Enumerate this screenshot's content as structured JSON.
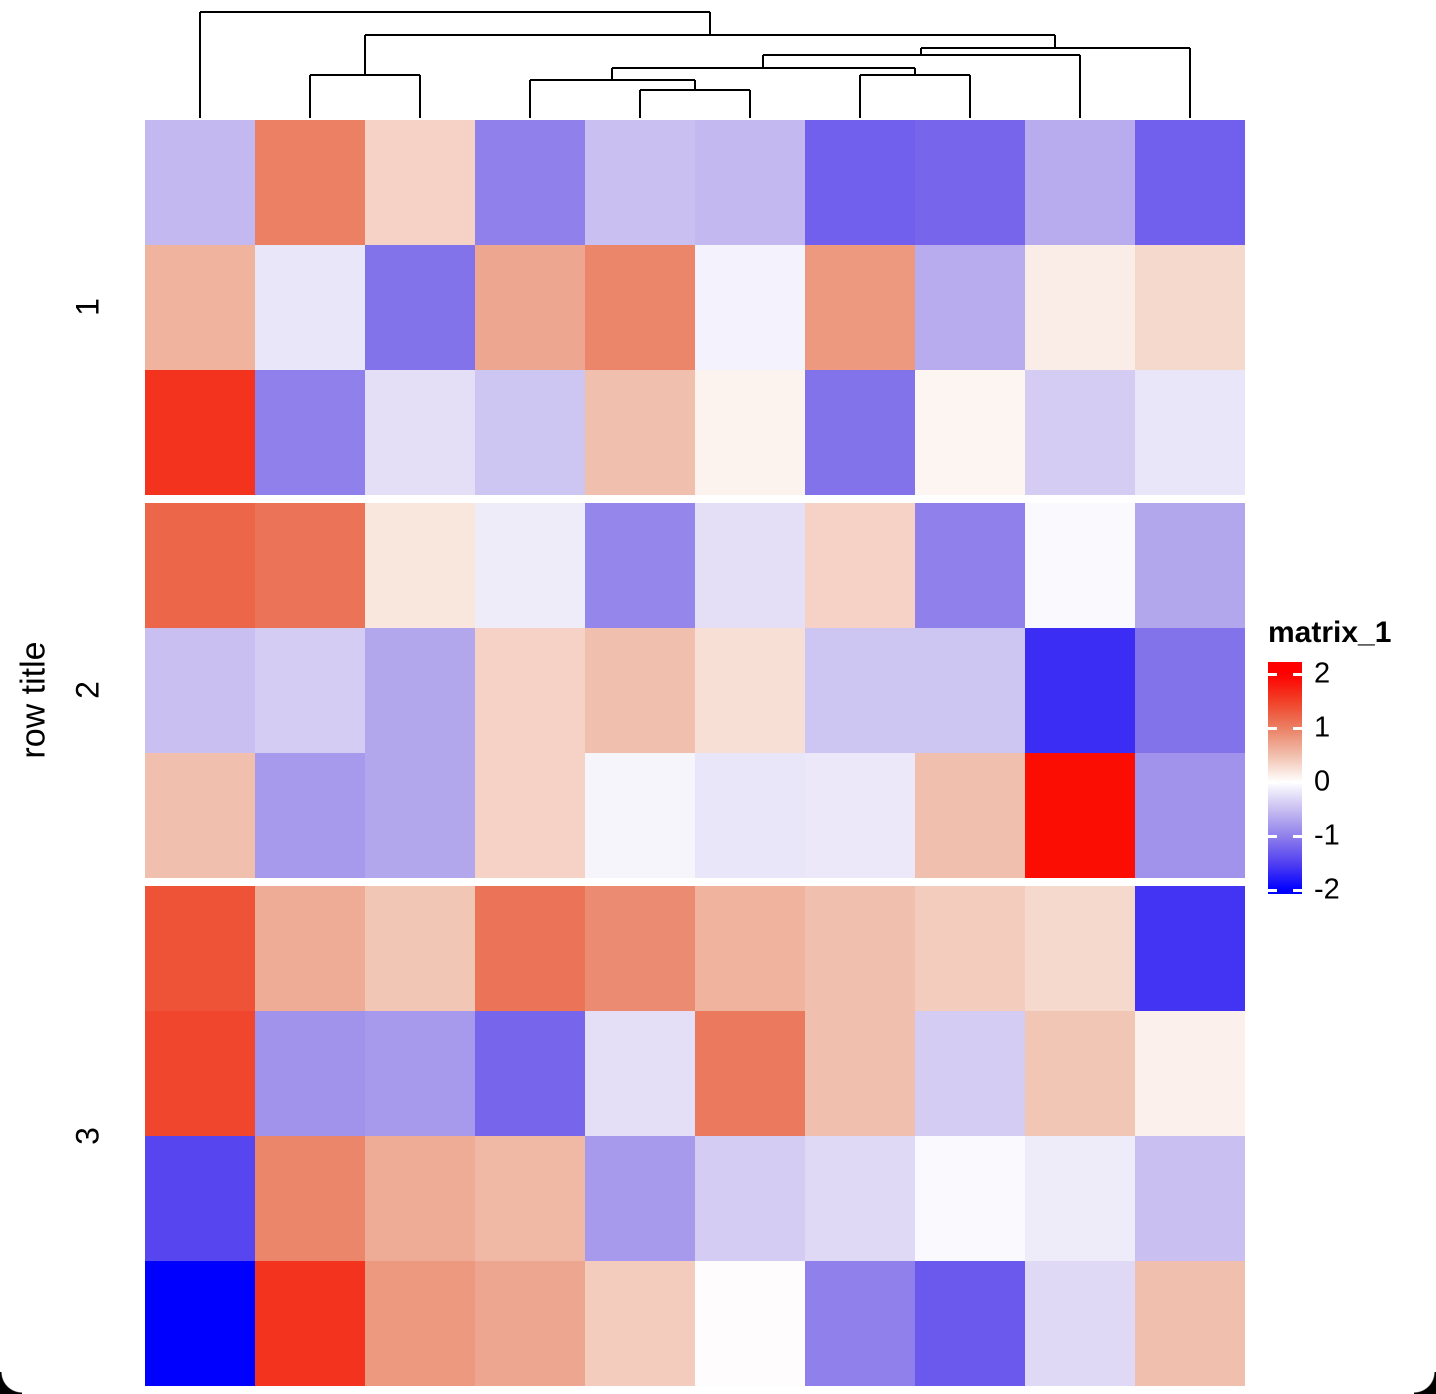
{
  "figure": {
    "row_title": "row title",
    "row_groups": [
      "1",
      "2",
      "3"
    ],
    "legend": {
      "title": "matrix_1",
      "ticks": [
        "2",
        "1",
        "0",
        "-1",
        "-2"
      ],
      "tick_values": [
        2,
        1,
        0,
        -1,
        -2
      ]
    }
  },
  "chart_data": {
    "type": "heatmap",
    "legend_title": "matrix_1",
    "row_title": "row title",
    "n_rows": 10,
    "n_cols": 10,
    "value_range": [
      -2,
      2
    ],
    "colormap": {
      "low": "#0000FF",
      "mid": "#FFFFFF",
      "high": "#FF0000"
    },
    "row_split": {
      "1": [
        0,
        1,
        2
      ],
      "2": [
        3,
        4,
        5
      ],
      "3": [
        6,
        7,
        8,
        9
      ]
    },
    "values": [
      [
        -0.55,
        1.0,
        0.35,
        -1.0,
        -0.5,
        -0.55,
        -1.25,
        -1.2,
        -0.65,
        -1.25
      ],
      [
        0.6,
        -0.2,
        -1.1,
        0.7,
        0.95,
        -0.1,
        0.8,
        -0.65,
        0.15,
        0.3
      ],
      [
        1.6,
        -1.0,
        -0.25,
        -0.45,
        0.5,
        0.1,
        -1.1,
        0.08,
        -0.4,
        -0.2
      ],
      [
        1.2,
        1.1,
        0.2,
        -0.15,
        -0.95,
        -0.25,
        0.35,
        -1.0,
        -0.05,
        -0.7
      ],
      [
        -0.5,
        -0.4,
        -0.7,
        0.35,
        0.5,
        0.25,
        -0.45,
        -0.45,
        -1.65,
        -1.1
      ],
      [
        0.5,
        -0.8,
        -0.7,
        0.35,
        -0.08,
        -0.2,
        -0.18,
        0.5,
        1.9,
        -0.85
      ],
      [
        1.35,
        0.65,
        0.45,
        1.1,
        0.9,
        0.6,
        0.5,
        0.4,
        0.3,
        -1.6
      ],
      [
        1.45,
        -0.85,
        -0.8,
        -1.2,
        -0.25,
        1.05,
        0.5,
        -0.4,
        0.45,
        0.12
      ],
      [
        -1.45,
        0.95,
        0.65,
        0.55,
        -0.8,
        -0.4,
        -0.3,
        -0.05,
        -0.15,
        -0.5
      ],
      [
        -2.0,
        1.6,
        0.8,
        0.7,
        0.4,
        0.02,
        -1.0,
        -1.3,
        -0.3,
        0.5
      ]
    ],
    "column_dendrogram_segments": [
      [
        200,
        12,
        200,
        118
      ],
      [
        310,
        75,
        310,
        118
      ],
      [
        420,
        75,
        420,
        118
      ],
      [
        365,
        35,
        365,
        75
      ],
      [
        530,
        80,
        530,
        118
      ],
      [
        640,
        90,
        640,
        118
      ],
      [
        750,
        90,
        750,
        118
      ],
      [
        695,
        80,
        695,
        90
      ],
      [
        612,
        68,
        612,
        80
      ],
      [
        860,
        75,
        860,
        118
      ],
      [
        970,
        75,
        970,
        118
      ],
      [
        915,
        68,
        915,
        75
      ],
      [
        763,
        55,
        763,
        68
      ],
      [
        1080,
        55,
        1080,
        118
      ],
      [
        921,
        48,
        921,
        55
      ],
      [
        1190,
        48,
        1190,
        118
      ],
      [
        1055,
        35,
        1055,
        48
      ],
      [
        710,
        12,
        710,
        35
      ],
      [
        200,
        12,
        710,
        12
      ],
      [
        365,
        35,
        1055,
        35
      ],
      [
        921,
        48,
        1190,
        48
      ],
      [
        763,
        55,
        1080,
        55
      ],
      [
        612,
        68,
        915,
        68
      ],
      [
        860,
        75,
        970,
        75
      ],
      [
        310,
        75,
        420,
        75
      ],
      [
        530,
        80,
        695,
        80
      ],
      [
        640,
        90,
        750,
        90
      ]
    ]
  }
}
